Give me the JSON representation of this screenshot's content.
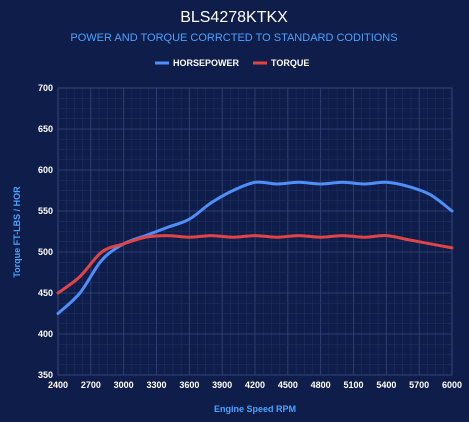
{
  "chart_data": {
    "type": "line",
    "title": "BLS4278KTKX",
    "subtitle": "POWER AND TORQUE CORRCTED TO STANDARD CODITIONS",
    "xlabel": "Engine Speed RPM",
    "ylabel": "Torque FT-LBS / HOR",
    "xlim": [
      2400,
      6000
    ],
    "ylim": [
      350,
      700
    ],
    "xticks": [
      2400,
      2700,
      3000,
      3300,
      3600,
      3900,
      4200,
      4500,
      4800,
      5100,
      5400,
      5700,
      6000
    ],
    "yticks": [
      350,
      400,
      450,
      500,
      550,
      600,
      650,
      700
    ],
    "grid": true,
    "legend_position": "top-center",
    "x": [
      2400,
      2600,
      2800,
      3000,
      3200,
      3400,
      3600,
      3800,
      4000,
      4200,
      4400,
      4600,
      4800,
      5000,
      5200,
      5400,
      5600,
      5800,
      6000
    ],
    "series": [
      {
        "name": "HORSEPOWER",
        "color": "#4f8ff7",
        "values": [
          425,
          450,
          490,
          510,
          520,
          530,
          540,
          560,
          575,
          585,
          583,
          585,
          583,
          585,
          583,
          585,
          580,
          570,
          550
        ]
      },
      {
        "name": "TORQUE",
        "color": "#e04545",
        "values": [
          450,
          470,
          500,
          510,
          518,
          520,
          518,
          520,
          518,
          520,
          518,
          520,
          518,
          520,
          518,
          520,
          515,
          510,
          505
        ]
      }
    ]
  }
}
